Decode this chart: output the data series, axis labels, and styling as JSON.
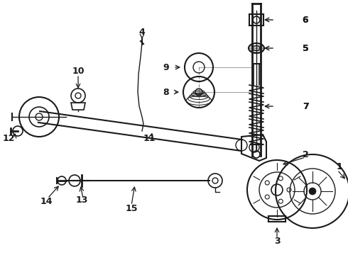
{
  "bg_color": "#ffffff",
  "line_color": "#1a1a1a",
  "fig_width": 4.9,
  "fig_height": 3.6,
  "dpi": 100,
  "label_fontsize": 9,
  "lw_main": 1.8,
  "lw_thin": 1.0,
  "lw_thick": 2.5
}
